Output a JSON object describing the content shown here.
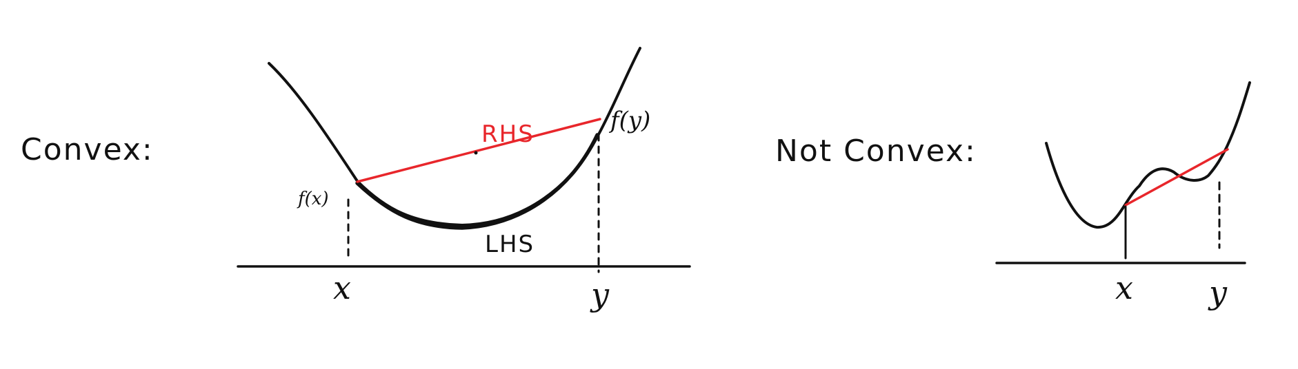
{
  "convex_panel": {
    "title": "Convex:",
    "x_label": "x",
    "y_label": "y",
    "fx_label": "f(x)",
    "fy_label": "f(y)",
    "rhs_label": "RHS",
    "lhs_label": "LHS"
  },
  "nonconvex_panel": {
    "title": "Not Convex:",
    "x_label": "x",
    "y_label": "y"
  },
  "colors": {
    "ink": "#111111",
    "chord": "#e8262b",
    "background": "#ffffff"
  }
}
